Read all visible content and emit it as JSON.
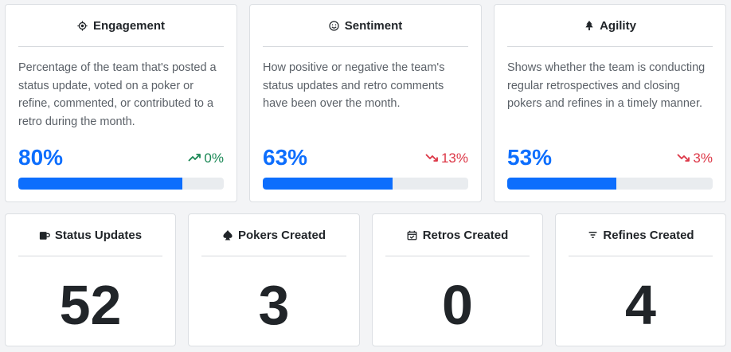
{
  "metrics": [
    {
      "title": "Engagement",
      "icon": "crosshair-icon",
      "description": "Percentage of the team that's posted a status update, voted on a poker or refine, commented, or contributed to a retro during the month.",
      "value": "80%",
      "progress": 0.8,
      "trend": "0%",
      "trend_direction": "up",
      "trend_icon": "trending-up-icon"
    },
    {
      "title": "Sentiment",
      "icon": "smiley-icon",
      "description": "How positive or negative the team's status updates and retro comments have been over the month.",
      "value": "63%",
      "progress": 0.63,
      "trend": "13%",
      "trend_direction": "down",
      "trend_icon": "trending-down-icon"
    },
    {
      "title": "Agility",
      "icon": "tree-icon",
      "description": "Shows whether the team is conducting regular retrospectives and closing pokers and refines in a timely manner.",
      "value": "53%",
      "progress": 0.53,
      "trend": "3%",
      "trend_direction": "down",
      "trend_icon": "trending-down-icon"
    }
  ],
  "counts": [
    {
      "title": "Status Updates",
      "icon": "coffee-cup-icon",
      "value": "52"
    },
    {
      "title": "Pokers Created",
      "icon": "spade-icon",
      "value": "3"
    },
    {
      "title": "Retros Created",
      "icon": "calendar-check-icon",
      "value": "0"
    },
    {
      "title": "Refines Created",
      "icon": "filter-icon",
      "value": "4"
    }
  ],
  "colors": {
    "accent": "#0d6efd",
    "trend_up": "#198754",
    "trend_down": "#dc3545",
    "bar_track": "#e9ecef"
  }
}
